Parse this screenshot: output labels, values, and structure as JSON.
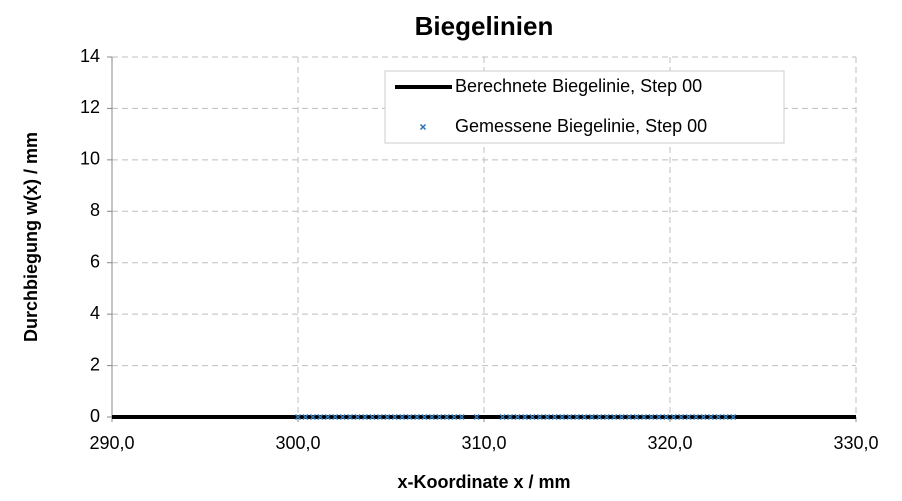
{
  "chart_data": {
    "type": "scatter",
    "title": "Biegelinien",
    "x_label": "x-Koordinate x / mm",
    "y_label": "Durchbiegung w(x) / mm",
    "xlim": [
      290,
      330
    ],
    "xticks": [
      {
        "value": 290,
        "label": "290,0"
      },
      {
        "value": 300,
        "label": "300,0"
      },
      {
        "value": 310,
        "label": "310,0"
      },
      {
        "value": 320,
        "label": "320,0"
      },
      {
        "value": 330,
        "label": "330,0"
      }
    ],
    "ylim": [
      0,
      14
    ],
    "yticks": [
      0,
      2,
      4,
      6,
      8,
      10,
      12,
      14
    ],
    "grid": true,
    "legend": "upper right",
    "series": [
      {
        "name": "Berechnete Biegelinie, Step 00",
        "color": "#000000",
        "style": "line",
        "x": [
          290,
          330
        ],
        "values": [
          0,
          0
        ]
      },
      {
        "name": "Gemessene Biegelinie, Step 00",
        "color": "#2e75b6",
        "style": "marker",
        "x": [
          300.0,
          300.4,
          300.8,
          301.2,
          301.6,
          302.0,
          302.4,
          302.8,
          303.2,
          303.6,
          304.0,
          304.4,
          304.8,
          305.2,
          305.6,
          306.0,
          306.4,
          306.8,
          307.2,
          307.6,
          308.0,
          308.4,
          308.8,
          309.6,
          311.0,
          311.4,
          311.8,
          312.2,
          312.6,
          313.0,
          313.4,
          313.8,
          314.2,
          314.6,
          315.0,
          315.4,
          315.8,
          316.2,
          316.6,
          317.0,
          317.4,
          317.8,
          318.2,
          318.6,
          319.0,
          319.4,
          319.8,
          320.2,
          320.6,
          321.0,
          321.4,
          321.8,
          322.2,
          322.6,
          323.0,
          323.4
        ],
        "values": [
          0,
          0,
          0,
          0,
          0,
          0,
          0,
          0,
          0,
          0,
          0,
          0,
          0,
          0,
          0,
          0,
          0,
          0,
          0,
          0,
          0,
          0,
          0,
          0,
          0,
          0,
          0,
          0,
          0,
          0,
          0,
          0,
          0,
          0,
          0,
          0,
          0,
          0,
          0,
          0,
          0,
          0,
          0,
          0,
          0,
          0,
          0,
          0,
          0,
          0,
          0,
          0,
          0,
          0,
          0,
          0
        ]
      }
    ]
  }
}
